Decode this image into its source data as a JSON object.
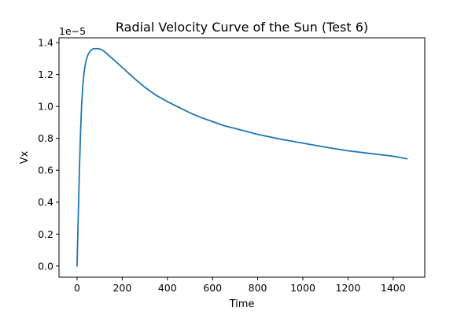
{
  "chart_data": {
    "type": "line",
    "title": "Radial Velocity Curve of the Sun (Test 6)",
    "xlabel": "Time",
    "ylabel": "Vx",
    "y_offset_label": "1e−5",
    "xlim": [
      -80,
      1540
    ],
    "ylim": [
      -0.07,
      1.43
    ],
    "x_ticks": [
      0,
      200,
      400,
      600,
      800,
      1000,
      1200,
      1400
    ],
    "x_tick_labels": [
      "0",
      "200",
      "400",
      "600",
      "800",
      "1000",
      "1200",
      "1400"
    ],
    "y_ticks": [
      0.0,
      0.2,
      0.4,
      0.6,
      0.8,
      1.0,
      1.2,
      1.4
    ],
    "y_tick_labels": [
      "0.0",
      "0.2",
      "0.4",
      "0.6",
      "0.8",
      "1.0",
      "1.2",
      "1.4"
    ],
    "grid": false,
    "series": [
      {
        "color": "#1f77b4",
        "x": [
          0,
          5,
          10,
          15,
          20,
          25,
          30,
          35,
          40,
          50,
          60,
          70,
          80,
          90,
          100,
          110,
          120,
          140,
          160,
          180,
          200,
          250,
          300,
          350,
          400,
          450,
          500,
          550,
          600,
          650,
          700,
          800,
          900,
          1000,
          1100,
          1200,
          1300,
          1400,
          1461
        ],
        "y": [
          0.0,
          0.3,
          0.58,
          0.82,
          1.0,
          1.12,
          1.2,
          1.25,
          1.29,
          1.33,
          1.35,
          1.36,
          1.362,
          1.362,
          1.36,
          1.355,
          1.345,
          1.32,
          1.295,
          1.27,
          1.245,
          1.18,
          1.12,
          1.07,
          1.03,
          0.995,
          0.96,
          0.93,
          0.905,
          0.88,
          0.862,
          0.825,
          0.795,
          0.77,
          0.745,
          0.722,
          0.705,
          0.688,
          0.672
        ]
      }
    ]
  }
}
